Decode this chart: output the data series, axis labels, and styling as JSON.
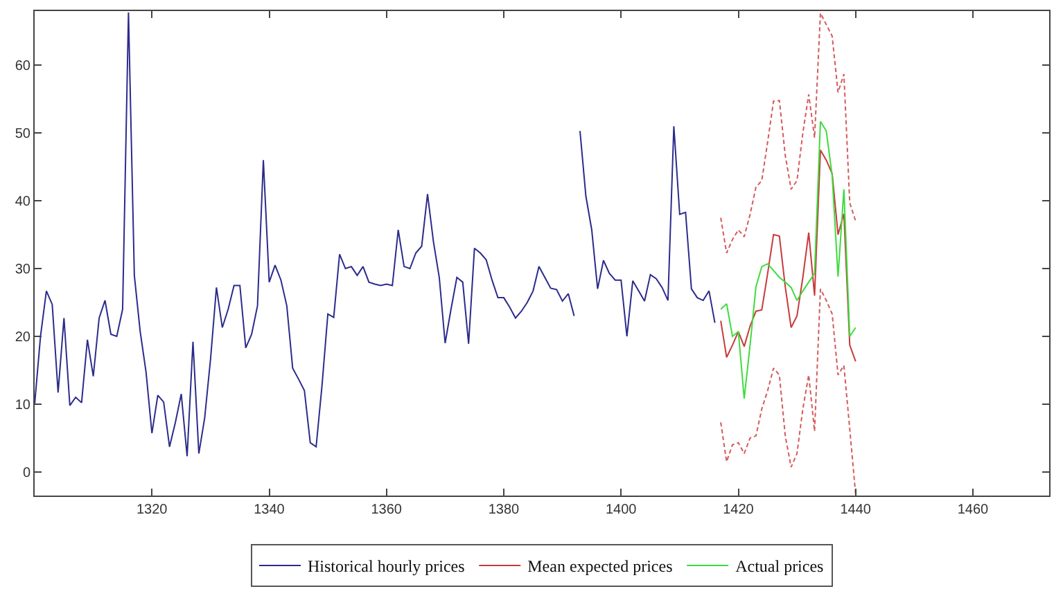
{
  "chart_data": {
    "type": "line",
    "xlim": [
      1300,
      1473
    ],
    "ylim": [
      -3.5,
      68
    ],
    "xticks": [
      1320,
      1340,
      1360,
      1380,
      1400,
      1420,
      1440,
      1460
    ],
    "yticks": [
      0,
      10,
      20,
      30,
      40,
      50,
      60
    ],
    "grid": false,
    "legend": "bottom",
    "line_style": "solid",
    "marker": "none",
    "series": [
      {
        "name": "Historical hourly prices",
        "color": "#2b2b8c",
        "x": [
          1300,
          1301,
          1302,
          1303,
          1304,
          1305,
          1306,
          1307,
          1308,
          1309,
          1310,
          1311,
          1312,
          1313,
          1314,
          1315,
          1316,
          1317,
          1318,
          1319,
          1320,
          1321,
          1322,
          1323,
          1324,
          1325,
          1326,
          1327,
          1328,
          1329,
          1330,
          1331,
          1332,
          1333,
          1334,
          1335,
          1336,
          1337,
          1338,
          1339,
          1340,
          1341,
          1342,
          1343,
          1344,
          1345,
          1346,
          1347,
          1348,
          1349,
          1350,
          1351,
          1352,
          1353,
          1354,
          1355,
          1356,
          1357,
          1358,
          1359,
          1360,
          1361,
          1362,
          1363,
          1364,
          1365,
          1366,
          1367,
          1368,
          1369,
          1370,
          1371,
          1372,
          1373,
          1374,
          1375,
          1376,
          1377,
          1378,
          1379,
          1380,
          1381,
          1382,
          1383,
          1384,
          1385,
          1386,
          1387,
          1388,
          1389,
          1390,
          1391,
          1392,
          1392.5,
          1393,
          1394,
          1395,
          1396,
          1397,
          1398,
          1399,
          1400,
          1401,
          1402,
          1403,
          1404,
          1405,
          1406,
          1407,
          1408,
          1409,
          1410,
          1411,
          1412,
          1413,
          1414,
          1415,
          1416
        ],
        "values": [
          10,
          20,
          26.7,
          24.7,
          11.7,
          22.7,
          9.8,
          11,
          10.2,
          19.5,
          14.1,
          22.7,
          25.3,
          20.3,
          20,
          24,
          67.8,
          29,
          20.7,
          14.7,
          5.7,
          11.3,
          10.3,
          3.7,
          7.3,
          11.5,
          2.3,
          19.2,
          2.7,
          8,
          16.7,
          27.2,
          21.3,
          24,
          27.5,
          27.5,
          18.3,
          20.3,
          24.5,
          46,
          28,
          30.5,
          28.3,
          24.5,
          15.3,
          13.7,
          12,
          4.3,
          3.7,
          12.7,
          23.3,
          22.8,
          32.1,
          30,
          30.3,
          29,
          30.3,
          28,
          27.7,
          27.5,
          27.7,
          27.5,
          35.7,
          30.3,
          30,
          32.3,
          33.3,
          41,
          34,
          28.7,
          19,
          24,
          28.7,
          28,
          18.9,
          33,
          32.3,
          31.3,
          28.3,
          25.7,
          25.7,
          24.3,
          22.7,
          23.7,
          25,
          26.7,
          30.3,
          28.7,
          27.1,
          26.9,
          25.2,
          26.3,
          23,
          null,
          50.3,
          40.7,
          35.7,
          27,
          31.2,
          29.3,
          28.3,
          28.3,
          20,
          28.2,
          26.7,
          25.2,
          29.1,
          28.5,
          27.2,
          25.3,
          51,
          38,
          38.3,
          27,
          25.7,
          25.3,
          26.7,
          22
        ]
      },
      {
        "name": "Mean expected prices",
        "color": "#c83a3a",
        "x": [
          1417,
          1418,
          1419,
          1420,
          1421,
          1422,
          1423,
          1424,
          1425,
          1426,
          1427,
          1428,
          1429,
          1430,
          1431,
          1432,
          1433,
          1434,
          1435,
          1436,
          1437,
          1438,
          1439,
          1440
        ],
        "values": [
          22.3,
          16.9,
          18.7,
          20.7,
          18.5,
          21.5,
          23.7,
          23.9,
          29.3,
          35,
          34.8,
          27.3,
          21.3,
          23,
          28.7,
          35.3,
          26,
          47.5,
          46,
          44,
          35,
          38.1,
          18.7,
          16.3
        ]
      },
      {
        "name": "Actual prices",
        "color": "#3ddc3d",
        "x": [
          1417,
          1418,
          1419,
          1420,
          1421,
          1422,
          1423,
          1424,
          1425,
          1426,
          1427,
          1428,
          1429,
          1430,
          1431,
          1432,
          1433,
          1434,
          1435,
          1436,
          1437,
          1438,
          1439,
          1440
        ],
        "values": [
          24,
          24.8,
          20,
          20.7,
          10.8,
          18.7,
          27.3,
          30.3,
          30.7,
          29.7,
          28.7,
          28,
          27.2,
          25.3,
          26.7,
          28,
          29.3,
          51.7,
          50.3,
          43.7,
          28.8,
          41.7,
          20,
          21.3
        ]
      },
      {
        "color": "#d65a5a",
        "line_style": "dashed",
        "x": [
          1417,
          1418,
          1419,
          1420,
          1421,
          1422,
          1423,
          1424,
          1425,
          1426,
          1427,
          1428,
          1429,
          1430,
          1431,
          1432,
          1433,
          1434,
          1435,
          1436,
          1437,
          1438,
          1439,
          1440
        ],
        "values": [
          37.5,
          32.3,
          34.3,
          35.7,
          34.7,
          38,
          42,
          43,
          48.7,
          54.7,
          54.8,
          46.7,
          41.7,
          43,
          50,
          55.7,
          49.3,
          67.7,
          66,
          64.3,
          56,
          58.7,
          39.7,
          37
        ]
      },
      {
        "color": "#d65a5a",
        "line_style": "dashed",
        "x": [
          1417,
          1418,
          1419,
          1420,
          1421,
          1422,
          1423,
          1424,
          1425,
          1426,
          1427,
          1428,
          1429,
          1430,
          1431,
          1432,
          1433,
          1434,
          1435,
          1436,
          1437,
          1438,
          1439,
          1440
        ],
        "values": [
          7.3,
          1.5,
          4,
          4.3,
          2.7,
          5,
          5.3,
          9.3,
          12,
          15.3,
          14.3,
          5.3,
          0.7,
          2.7,
          9.3,
          14.3,
          6,
          27,
          25.3,
          23.3,
          14.3,
          15.7,
          6.3,
          -3.3
        ]
      }
    ]
  }
}
